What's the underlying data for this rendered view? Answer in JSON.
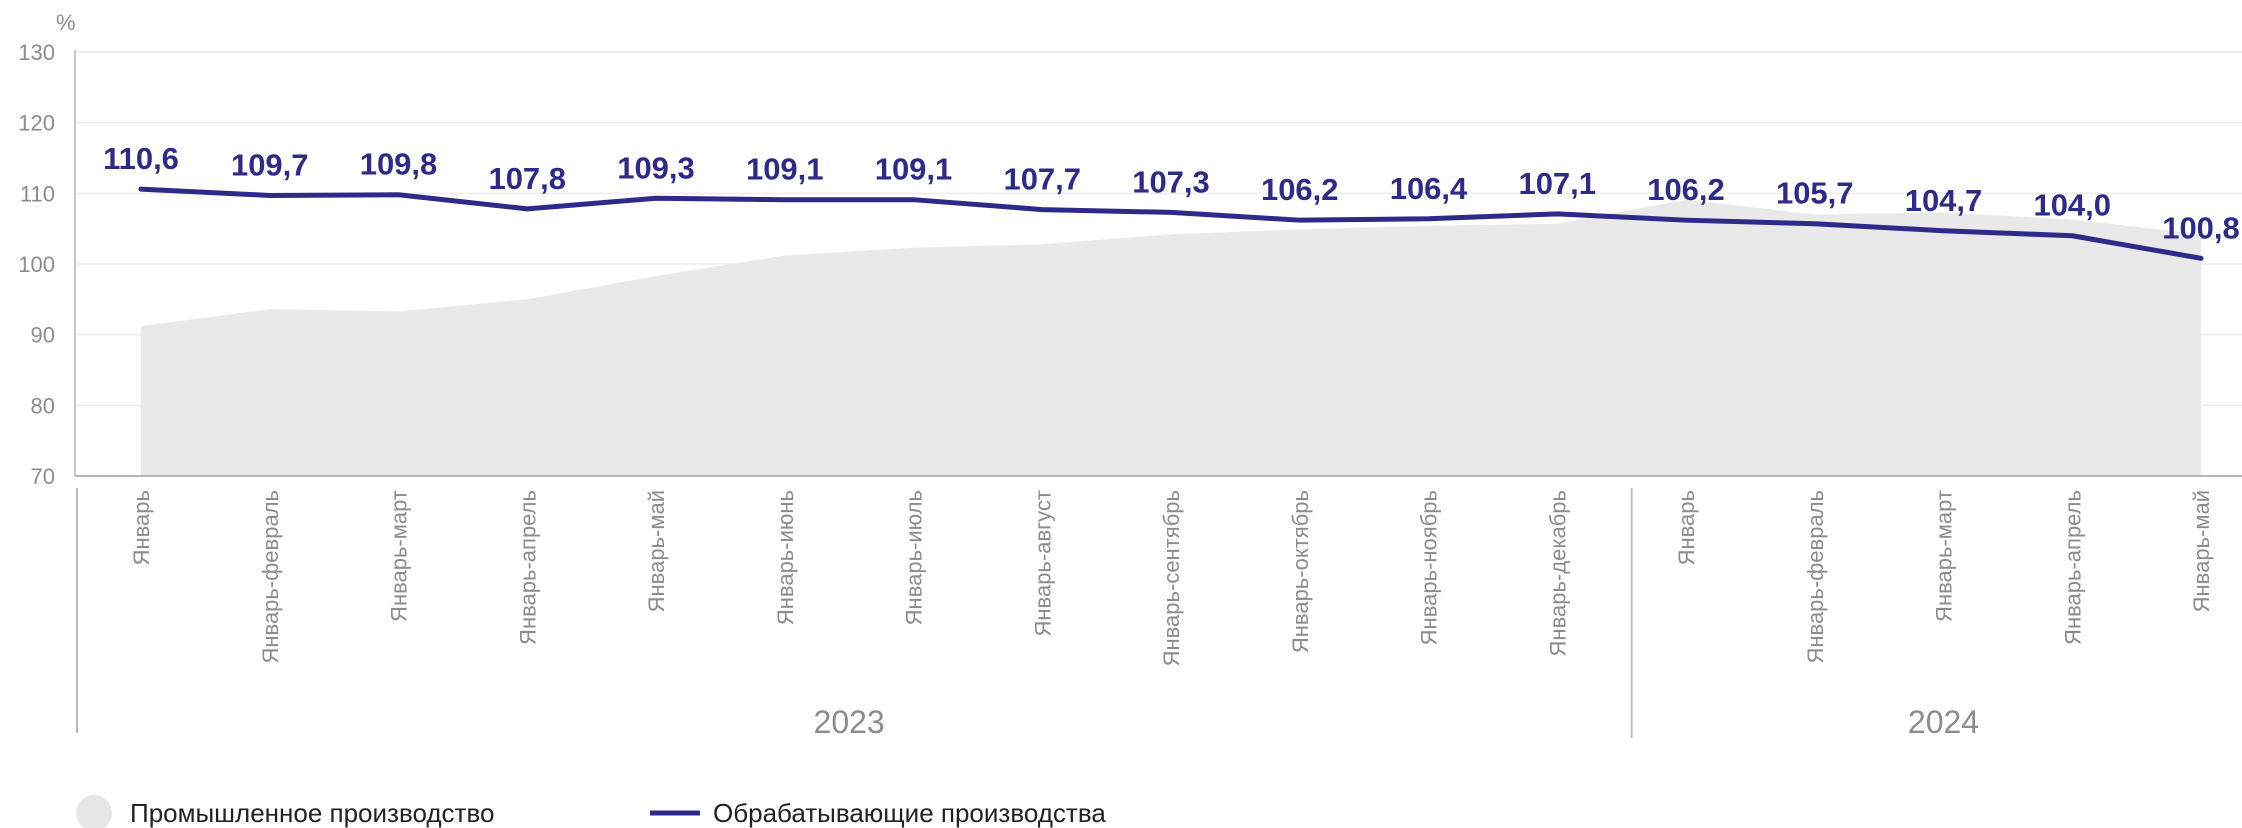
{
  "chart_data": {
    "type": "line",
    "unit": "%",
    "ylim": [
      70,
      130
    ],
    "yticks": [
      70,
      80,
      90,
      100,
      110,
      120,
      130
    ],
    "grid": true,
    "categories": [
      "Январь",
      "Январь-февраль",
      "Январь-март",
      "Январь-апрель",
      "Январь-май",
      "Январь-июнь",
      "Январь-июль",
      "Январь-август",
      "Январь-сентябрь",
      "Январь-октябрь",
      "Январь-ноябрь",
      "Январь-декабрь",
      "Январь",
      "Январь-февраль",
      "Январь-март",
      "Январь-апрель",
      "Январь-май"
    ],
    "year_groups": [
      {
        "label": "2023",
        "count": 12
      },
      {
        "label": "2024",
        "count": 5
      }
    ],
    "series": [
      {
        "name": "Промышленное производство",
        "type": "area",
        "color": "#e9e9e9",
        "values": [
          91.2,
          93.6,
          93.3,
          95.0,
          98.3,
          101.2,
          102.3,
          102.8,
          104.2,
          104.9,
          105.4,
          105.7,
          109.1,
          107.0,
          107.3,
          106.3,
          104.2
        ]
      },
      {
        "name": "Обрабатывающие производства",
        "type": "line",
        "color": "#2e2a8a",
        "values": [
          110.6,
          109.7,
          109.8,
          107.8,
          109.3,
          109.1,
          109.1,
          107.7,
          107.3,
          106.2,
          106.4,
          107.1,
          106.2,
          105.7,
          104.7,
          104.0,
          100.8
        ],
        "labels": [
          "110,6",
          "109,7",
          "109,8",
          "107,8",
          "109,3",
          "109,1",
          "109,1",
          "107,7",
          "107,3",
          "106,2",
          "106,4",
          "107,1",
          "106,2",
          "105,7",
          "104,7",
          "104,0",
          "100,8"
        ]
      }
    ],
    "legend": {
      "placement": "bottom-left",
      "items": [
        {
          "label": "Промышленное производство",
          "marker": "circle",
          "color": "#e6e6e6"
        },
        {
          "label": "Обрабатывающие производства",
          "marker": "line",
          "color": "#2e2a8a"
        }
      ]
    }
  }
}
